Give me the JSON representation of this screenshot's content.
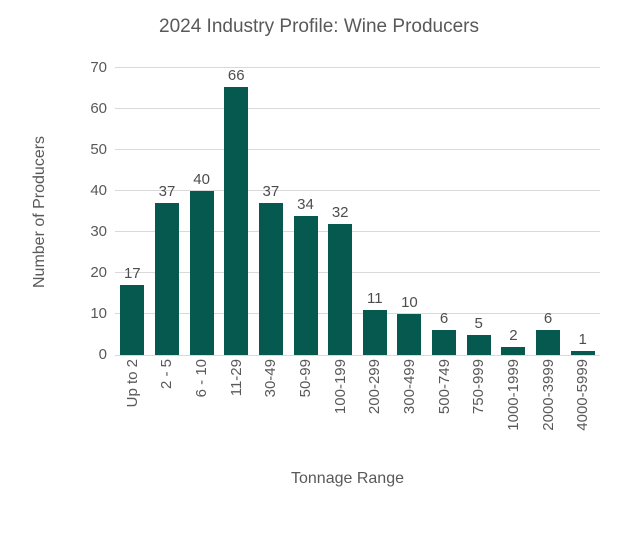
{
  "chart_data": {
    "type": "bar",
    "title": "2024 Industry Profile: Wine Producers",
    "xlabel": "Tonnage Range",
    "ylabel": "Number of Producers",
    "categories": [
      "Up to 2",
      "2 - 5",
      "6 - 10",
      "11-29",
      "30-49",
      "50-99",
      "100-199",
      "200-299",
      "300-499",
      "500-749",
      "750-999",
      "1000-1999",
      "2000-3999",
      "4000-5999"
    ],
    "values": [
      17,
      37,
      40,
      66,
      37,
      34,
      32,
      11,
      10,
      6,
      5,
      2,
      6,
      1
    ],
    "ylim": [
      0,
      70
    ],
    "yticks": [
      0,
      10,
      20,
      30,
      40,
      50,
      60,
      70
    ],
    "grid": true,
    "data_labels": true,
    "legend_position": "none",
    "colors": {
      "bar": "#06594f",
      "grid": "#d9d9d9",
      "axis_text": "#595959",
      "data_label_text": "#4d4d4d",
      "title_text": "#595959",
      "background": "#ffffff"
    }
  }
}
